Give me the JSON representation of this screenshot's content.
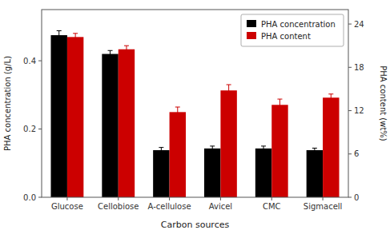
{
  "chart_data": {
    "type": "bar",
    "xlabel": "Carbon sources",
    "ylabel": "PHA concentration (g/L)",
    "y2label": "PHA content (wt%)",
    "categories": [
      "Glucose",
      "Cellobiose",
      "A-cellulose",
      "Avicel",
      "CMC",
      "Sigmacell"
    ],
    "series": [
      {
        "name": "PHA concentration",
        "color": "#000000",
        "values": [
          0.475,
          0.42,
          0.138,
          0.143,
          0.143,
          0.138
        ],
        "errors": [
          0.013,
          0.01,
          0.008,
          0.007,
          0.007,
          0.006
        ]
      },
      {
        "name": "PHA content",
        "color": "#cc0000",
        "axis": "y2",
        "values": [
          22.2,
          20.5,
          11.8,
          14.8,
          12.8,
          13.8
        ],
        "errors": [
          0.5,
          0.5,
          0.7,
          0.8,
          0.8,
          0.5
        ]
      }
    ],
    "ylim": [
      0,
      0.55
    ],
    "yticks": [
      {
        "value": 0,
        "label": "0.0"
      },
      0.2,
      0.4
    ],
    "y2lim": [
      0,
      26.0
    ],
    "y2ticks": [
      0,
      6,
      12,
      18,
      24
    ],
    "grid": false,
    "legend": "upper right"
  }
}
